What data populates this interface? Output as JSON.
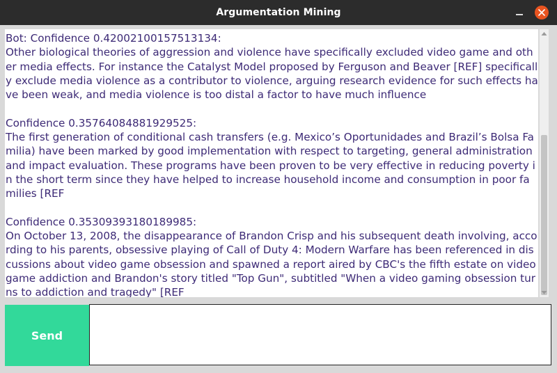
{
  "window": {
    "title": "Argumentation Mining"
  },
  "chat": {
    "transcript": "Bot: Confidence 0.42002100157513134:\nOther biological theories of aggression and violence have specifically excluded video game and other media effects. For instance the Catalyst Model proposed by Ferguson and Beaver [REF] specifically exclude media violence as a contributor to violence, arguing research evidence for such effects have been weak, and media violence is too distal a factor to have much influence\n\nConfidence 0.35764084881929525:\nThe first generation of conditional cash transfers (e.g. Mexico’s Oportunidades and Brazil’s Bolsa Familia) have been marked by good implementation with respect to targeting, general administration and impact evaluation. These programs have been proven to be very effective in reducing poverty in the short term since they have helped to increase household income and consumption in poor families [REF\n\nConfidence 0.35309393180189985:\nOn October 13, 2008, the disappearance of Brandon Crisp and his subsequent death involving, according to his parents, obsessive playing of Call of Duty 4: Modern Warfare has been referenced in discussions about video game obsession and spawned a report aired by CBC's the fifth estate on video game addiction and Brandon's story titled \"Top Gun\", subtitled \"When a video gaming obsession turns to addiction and tragedy\" [REF"
  },
  "input": {
    "send_label": "Send",
    "value": ""
  },
  "colors": {
    "accent": "#32d99a",
    "text": "#3d2a76",
    "close": "#e95420"
  }
}
